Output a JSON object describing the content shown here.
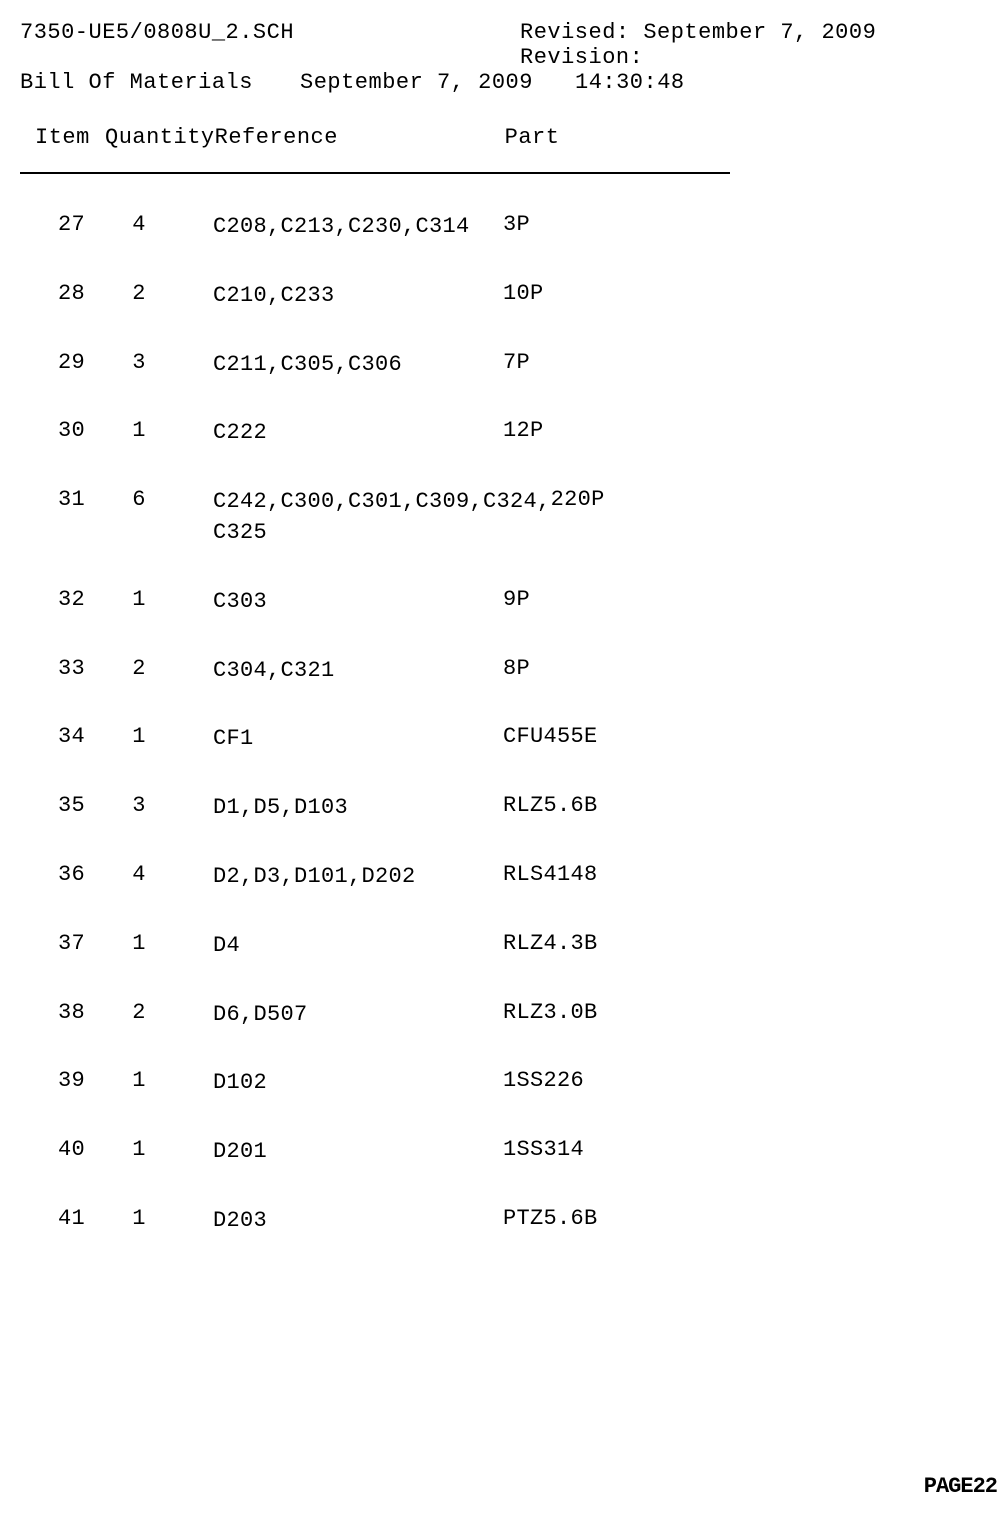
{
  "header": {
    "filename": "7350-UE5/0808U_2.SCH",
    "revised_label": "Revised:",
    "revised_date": "September  7, 2009",
    "revision_label": "Revision:",
    "bom_label": "Bill Of Materials",
    "bom_date": "September  7, 2009",
    "bom_time": "14:30:48"
  },
  "columns": {
    "item": "Item",
    "quantity": "Quantity",
    "reference": "Reference",
    "part": "Part"
  },
  "rows": [
    {
      "item": "27",
      "quantity": "4",
      "reference": "C208,C213,C230,C314",
      "part": "3P"
    },
    {
      "item": "28",
      "quantity": "2",
      "reference": "C210,C233",
      "part": "10P"
    },
    {
      "item": "29",
      "quantity": "3",
      "reference": "C211,C305,C306",
      "part": "7P"
    },
    {
      "item": "30",
      "quantity": "1",
      "reference": "C222",
      "part": "12P"
    },
    {
      "item": "31",
      "quantity": "6",
      "reference": "C242,C300,C301,C309,C324, C325",
      "part": "220P"
    },
    {
      "item": "32",
      "quantity": "1",
      "reference": "C303",
      "part": "9P"
    },
    {
      "item": "33",
      "quantity": "2",
      "reference": "C304,C321",
      "part": "8P"
    },
    {
      "item": "34",
      "quantity": "1",
      "reference": "CF1",
      "part": "CFU455E"
    },
    {
      "item": "35",
      "quantity": "3",
      "reference": "D1,D5,D103",
      "part": "RLZ5.6B"
    },
    {
      "item": "36",
      "quantity": "4",
      "reference": "D2,D3,D101,D202",
      "part": "RLS4148"
    },
    {
      "item": "37",
      "quantity": "1",
      "reference": "D4",
      "part": "RLZ4.3B"
    },
    {
      "item": "38",
      "quantity": "2",
      "reference": "D6,D507",
      "part": "RLZ3.0B"
    },
    {
      "item": "39",
      "quantity": "1",
      "reference": "D102",
      "part": "1SS226"
    },
    {
      "item": "40",
      "quantity": "1",
      "reference": "D201",
      "part": "1SS314"
    },
    {
      "item": "41",
      "quantity": "1",
      "reference": "D203",
      "part": "PTZ5.6B"
    }
  ],
  "page_label": "PAGE22"
}
